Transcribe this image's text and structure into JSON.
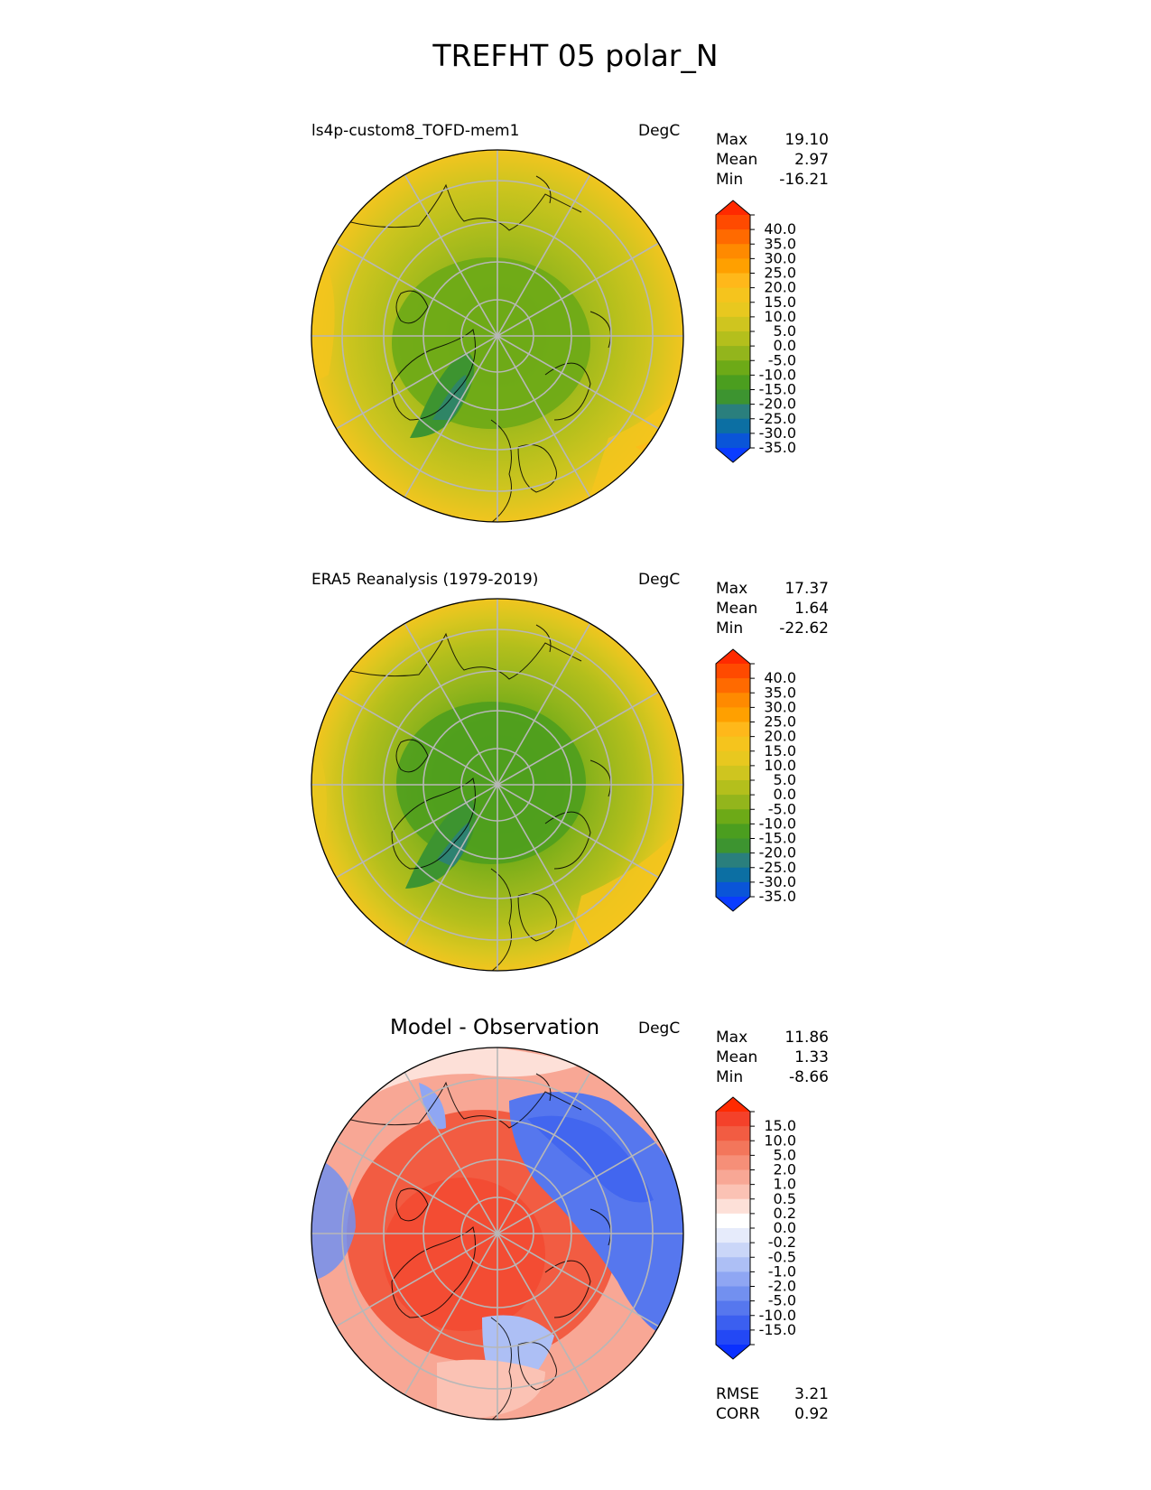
{
  "figure_title": "TREFHT 05 polar_N",
  "panels": [
    {
      "id": "test",
      "title": "ls4p-custom8_TOFD-mem1",
      "units": "DegC",
      "stats": [
        {
          "label": "Max",
          "value": "19.10"
        },
        {
          "label": "Mean",
          "value": "2.97"
        },
        {
          "label": "Min",
          "value": "-16.21"
        }
      ],
      "colorbar": "abs"
    },
    {
      "id": "ref",
      "title": "ERA5 Reanalysis (1979-2019)",
      "units": "DegC",
      "stats": [
        {
          "label": "Max",
          "value": "17.37"
        },
        {
          "label": "Mean",
          "value": "1.64"
        },
        {
          "label": "Min",
          "value": "-22.62"
        }
      ],
      "colorbar": "abs"
    },
    {
      "id": "diff",
      "title": "Model - Observation",
      "units": "DegC",
      "stats": [
        {
          "label": "Max",
          "value": "11.86"
        },
        {
          "label": "Mean",
          "value": "1.33"
        },
        {
          "label": "Min",
          "value": "-8.66"
        }
      ],
      "colorbar": "diff",
      "extra_stats": [
        {
          "label": "RMSE",
          "value": "3.21"
        },
        {
          "label": "CORR",
          "value": "0.92"
        }
      ]
    }
  ],
  "colorbars": {
    "abs": {
      "ticks": [
        "40.0",
        "35.0",
        "30.0",
        "25.0",
        "20.0",
        "15.0",
        "10.0",
        "5.0",
        "0.0",
        "-5.0",
        "-10.0",
        "-15.0",
        "-20.0",
        "-25.0",
        "-30.0",
        "-35.0"
      ],
      "colors": [
        "#ff2a00",
        "#ff4a00",
        "#ff6a00",
        "#ff8a00",
        "#ffa000",
        "#ffb81a",
        "#f5c41d",
        "#e8c81f",
        "#cfc51f",
        "#b4bf1c",
        "#93b51c",
        "#6daa17",
        "#4b9e1f",
        "#3d9430",
        "#2a7f7d",
        "#0c6fa3",
        "#0a55d8",
        "#0a3cff"
      ]
    },
    "diff": {
      "ticks": [
        "15.0",
        "10.0",
        "5.0",
        "2.0",
        "1.0",
        "0.5",
        "0.2",
        "0.0",
        "-0.2",
        "-0.5",
        "-1.0",
        "-2.0",
        "-5.0",
        "-10.0",
        "-15.0"
      ],
      "colors": [
        "#ff2a00",
        "#f4412a",
        "#f25c42",
        "#f3765b",
        "#f68f78",
        "#f8a795",
        "#fbc2b4",
        "#fde0d8",
        "#ffffff",
        "#e6ebfb",
        "#cad6f8",
        "#adbff5",
        "#8fa6f3",
        "#7290f0",
        "#5677ee",
        "#3b5ff0",
        "#2348f5",
        "#0a30ff"
      ]
    }
  },
  "chart_data": [
    {
      "type": "heatmap",
      "title": "ls4p-custom8_TOFD-mem1",
      "units": "DegC",
      "projection": "north polar stereographic",
      "stats": {
        "max": 19.1,
        "mean": 2.97,
        "min": -16.21
      },
      "levels": [
        -35,
        -30,
        -25,
        -20,
        -15,
        -10,
        -5,
        0,
        5,
        10,
        15,
        20,
        25,
        30,
        35,
        40
      ],
      "colormap": "abs"
    },
    {
      "type": "heatmap",
      "title": "ERA5 Reanalysis (1979-2019)",
      "units": "DegC",
      "projection": "north polar stereographic",
      "stats": {
        "max": 17.37,
        "mean": 1.64,
        "min": -22.62
      },
      "levels": [
        -35,
        -30,
        -25,
        -20,
        -15,
        -10,
        -5,
        0,
        5,
        10,
        15,
        20,
        25,
        30,
        35,
        40
      ],
      "colormap": "abs"
    },
    {
      "type": "heatmap",
      "title": "Model - Observation",
      "units": "DegC",
      "projection": "north polar stereographic",
      "stats": {
        "max": 11.86,
        "mean": 1.33,
        "min": -8.66,
        "rmse": 3.21,
        "corr": 0.92
      },
      "levels": [
        -15,
        -10,
        -5,
        -2,
        -1,
        -0.5,
        -0.2,
        0,
        0.2,
        0.5,
        1,
        2,
        5,
        10,
        15
      ],
      "colormap": "diff"
    }
  ]
}
